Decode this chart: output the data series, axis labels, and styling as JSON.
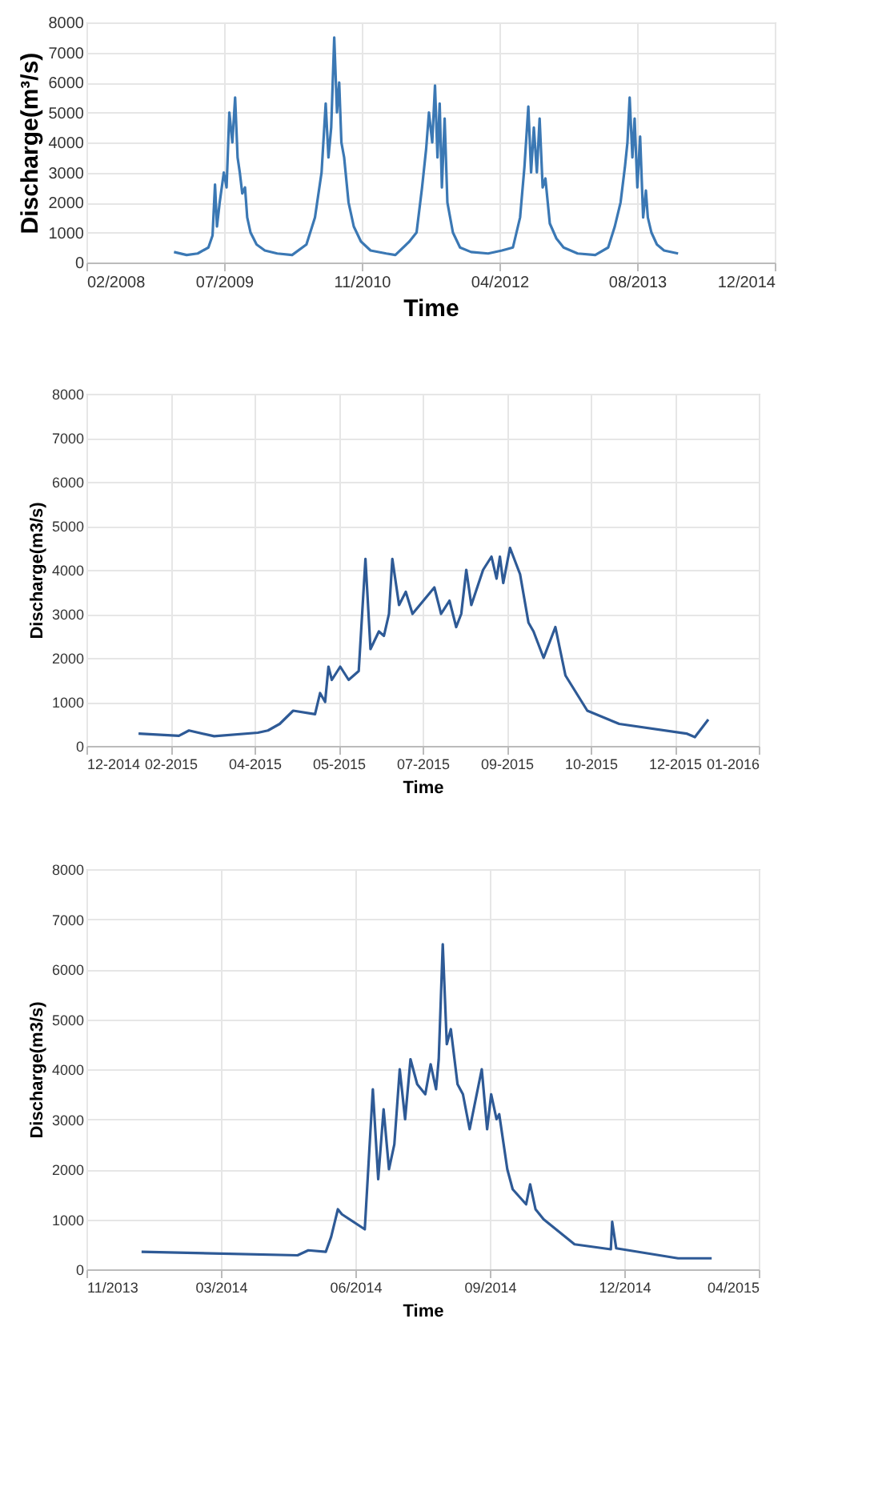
{
  "chart_data": [
    {
      "type": "line",
      "xlabel": "Time",
      "ylabel": "Discharge(m³/s)",
      "grid": true,
      "xlim": [
        "2008-02-22",
        "2014-12-27"
      ],
      "ylim": [
        0,
        8000
      ],
      "yticks": [
        0,
        1000,
        2000,
        3000,
        4000,
        5000,
        6000,
        7000,
        8000
      ],
      "xticks": [
        {
          "value": "2008-02-22",
          "label": "02/2008"
        },
        {
          "value": "2009-07-06",
          "label": "07/2009"
        },
        {
          "value": "2010-11-18",
          "label": "11/2010"
        },
        {
          "value": "2012-04-01",
          "label": "04/2012"
        },
        {
          "value": "2013-08-14",
          "label": "08/2013"
        },
        {
          "value": "2014-12-27",
          "label": "12/2014"
        }
      ],
      "series": [
        {
          "color": "#3b78b4",
          "x": [
            "2009-01-05",
            "2009-02-20",
            "2009-04-01",
            "2009-05-10",
            "2009-05-25",
            "2009-06-03",
            "2009-06-10",
            "2009-06-20",
            "2009-07-05",
            "2009-07-15",
            "2009-07-25",
            "2009-08-05",
            "2009-08-15",
            "2009-08-24",
            "2009-09-01",
            "2009-09-10",
            "2009-09-20",
            "2009-09-28",
            "2009-10-10",
            "2009-11-01",
            "2009-12-01",
            "2010-01-15",
            "2010-03-10",
            "2010-05-01",
            "2010-06-01",
            "2010-06-25",
            "2010-07-10",
            "2010-07-20",
            "2010-07-30",
            "2010-08-10",
            "2010-08-20",
            "2010-08-28",
            "2010-09-05",
            "2010-09-15",
            "2010-10-01",
            "2010-10-20",
            "2010-11-15",
            "2010-12-20",
            "2011-02-15",
            "2011-03-20",
            "2011-05-10",
            "2011-06-05",
            "2011-06-25",
            "2011-07-10",
            "2011-07-20",
            "2011-08-01",
            "2011-08-11",
            "2011-08-20",
            "2011-08-28",
            "2011-09-05",
            "2011-09-15",
            "2011-09-25",
            "2011-10-15",
            "2011-11-10",
            "2011-12-20",
            "2012-02-20",
            "2012-04-10",
            "2012-05-20",
            "2012-06-15",
            "2012-07-01",
            "2012-07-15",
            "2012-07-25",
            "2012-08-04",
            "2012-08-15",
            "2012-08-25",
            "2012-09-05",
            "2012-09-15",
            "2012-10-01",
            "2012-10-25",
            "2012-11-20",
            "2013-01-10",
            "2013-03-15",
            "2013-05-01",
            "2013-05-25",
            "2013-06-15",
            "2013-07-01",
            "2013-07-10",
            "2013-07-18",
            "2013-07-28",
            "2013-08-05",
            "2013-08-15",
            "2013-08-25",
            "2013-09-05",
            "2013-09-15",
            "2013-09-22",
            "2013-10-05",
            "2013-10-25",
            "2013-11-20",
            "2014-01-10"
          ],
          "values": [
            350,
            250,
            300,
            500,
            900,
            2600,
            1200,
            2000,
            3000,
            2500,
            5000,
            4000,
            5500,
            3500,
            3000,
            2300,
            2500,
            1500,
            1000,
            600,
            400,
            300,
            250,
            600,
            1500,
            3000,
            5300,
            3500,
            4500,
            7500,
            5000,
            6000,
            4000,
            3500,
            2000,
            1200,
            700,
            400,
            300,
            250,
            700,
            1000,
            2500,
            3800,
            5000,
            4000,
            5900,
            3500,
            5300,
            2500,
            4800,
            2000,
            1000,
            500,
            350,
            300,
            400,
            500,
            1500,
            3200,
            5200,
            3000,
            4500,
            3000,
            4800,
            2500,
            2800,
            1300,
            800,
            500,
            300,
            250,
            500,
            1200,
            2000,
            3200,
            4000,
            5500,
            3500,
            4800,
            2500,
            4200,
            1500,
            2400,
            1500,
            1000,
            600,
            400,
            300
          ]
        }
      ]
    },
    {
      "type": "line",
      "xlabel": "Time",
      "ylabel": "Discharge(m3/s)",
      "grid": true,
      "xlim": [
        "2014-12-27",
        "2016-01-31"
      ],
      "ylim": [
        0,
        8000
      ],
      "yticks": [
        0,
        1000,
        2000,
        3000,
        4000,
        5000,
        6000,
        7000,
        8000
      ],
      "xticks": [
        {
          "value": "2014-12-27",
          "label": "12-2014"
        },
        {
          "value": "2015-02-15",
          "label": "02-2015"
        },
        {
          "value": "2015-04-06",
          "label": "04-2015"
        },
        {
          "value": "2015-05-26",
          "label": "05-2015"
        },
        {
          "value": "2015-07-15",
          "label": "07-2015"
        },
        {
          "value": "2015-09-03",
          "label": "09-2015"
        },
        {
          "value": "2015-10-23",
          "label": "10-2015"
        },
        {
          "value": "2015-12-12",
          "label": "12-2015"
        },
        {
          "value": "2016-01-31",
          "label": "01-2016"
        }
      ],
      "series": [
        {
          "color": "#2e5a96",
          "x": [
            "2015-01-27",
            "2015-02-20",
            "2015-02-26",
            "2015-03-13",
            "2015-04-08",
            "2015-04-14",
            "2015-04-21",
            "2015-04-29",
            "2015-05-12",
            "2015-05-15",
            "2015-05-18",
            "2015-05-20",
            "2015-05-22",
            "2015-05-27",
            "2015-06-01",
            "2015-06-07",
            "2015-06-11",
            "2015-06-14",
            "2015-06-19",
            "2015-06-22",
            "2015-06-25",
            "2015-06-27",
            "2015-07-01",
            "2015-07-05",
            "2015-07-09",
            "2015-07-22",
            "2015-07-26",
            "2015-07-31",
            "2015-08-04",
            "2015-08-07",
            "2015-08-10",
            "2015-08-13",
            "2015-08-20",
            "2015-08-25",
            "2015-08-28",
            "2015-08-30",
            "2015-09-01",
            "2015-09-05",
            "2015-09-11",
            "2015-09-16",
            "2015-09-19",
            "2015-09-25",
            "2015-10-02",
            "2015-10-08",
            "2015-10-21",
            "2015-11-09",
            "2015-12-19",
            "2015-12-24",
            "2016-01-01"
          ],
          "values": [
            280,
            230,
            350,
            220,
            300,
            350,
            500,
            800,
            720,
            1200,
            1000,
            1800,
            1500,
            1800,
            1500,
            1700,
            4250,
            2200,
            2600,
            2500,
            3000,
            4250,
            3200,
            3500,
            3000,
            3600,
            3000,
            3300,
            2700,
            3000,
            4000,
            3200,
            4000,
            4300,
            3800,
            4300,
            3700,
            4500,
            3900,
            2800,
            2600,
            2000,
            2700,
            1600,
            800,
            500,
            280,
            200,
            600
          ]
        }
      ]
    },
    {
      "type": "line",
      "xlabel": "Time",
      "ylabel": "Discharge(m3/s)",
      "grid": true,
      "xlim": [
        "2013-11-22",
        "2015-04-06"
      ],
      "ylim": [
        0,
        8000
      ],
      "yticks": [
        0,
        1000,
        2000,
        3000,
        4000,
        5000,
        6000,
        7000,
        8000
      ],
      "xticks": [
        {
          "value": "2013-11-22",
          "label": "11/2013"
        },
        {
          "value": "2014-03-02",
          "label": "03/2014"
        },
        {
          "value": "2014-06-10",
          "label": "06/2014"
        },
        {
          "value": "2014-09-18",
          "label": "09/2014"
        },
        {
          "value": "2014-12-27",
          "label": "12/2014"
        },
        {
          "value": "2015-04-06",
          "label": "04/2015"
        }
      ],
      "series": [
        {
          "color": "#2e5a96",
          "x": [
            "2014-01-02",
            "2014-04-28",
            "2014-05-06",
            "2014-05-19",
            "2014-05-23",
            "2014-05-28",
            "2014-05-31",
            "2014-06-17",
            "2014-06-23",
            "2014-06-27",
            "2014-07-01",
            "2014-07-05",
            "2014-07-09",
            "2014-07-13",
            "2014-07-17",
            "2014-07-21",
            "2014-07-26",
            "2014-08-01",
            "2014-08-05",
            "2014-08-09",
            "2014-08-11",
            "2014-08-14",
            "2014-08-17",
            "2014-08-20",
            "2014-08-25",
            "2014-08-29",
            "2014-09-03",
            "2014-09-12",
            "2014-09-16",
            "2014-09-19",
            "2014-09-23",
            "2014-09-25",
            "2014-10-01",
            "2014-10-05",
            "2014-10-15",
            "2014-10-18",
            "2014-10-22",
            "2014-10-28",
            "2014-11-20",
            "2014-12-17",
            "2014-12-18",
            "2014-12-21",
            "2015-02-05",
            "2015-03-02"
          ],
          "values": [
            350,
            280,
            380,
            350,
            650,
            1200,
            1100,
            800,
            3600,
            1800,
            3200,
            2000,
            2500,
            4000,
            3000,
            4200,
            3700,
            3500,
            4100,
            3600,
            4200,
            6500,
            4500,
            4800,
            3700,
            3500,
            2800,
            4000,
            2800,
            3500,
            3000,
            3100,
            2000,
            1600,
            1300,
            1700,
            1200,
            1000,
            500,
            400,
            950,
            420,
            220,
            220
          ]
        }
      ]
    }
  ]
}
